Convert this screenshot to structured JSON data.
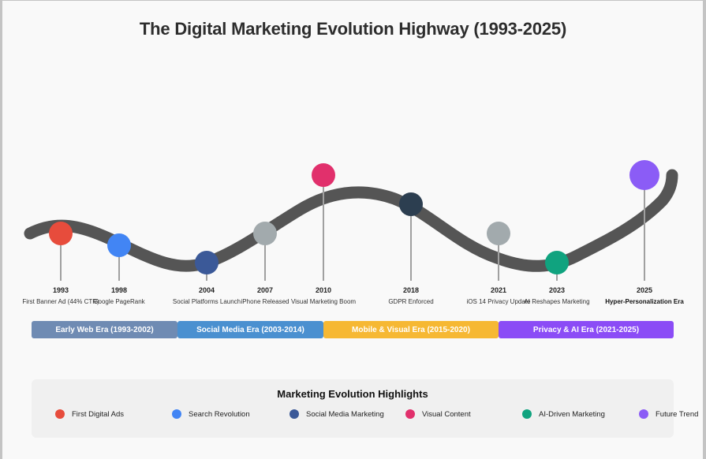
{
  "title": "The Digital Marketing Evolution Highway (1993-2025)",
  "milestones": [
    {
      "year": "1993",
      "event": "First Banner Ad (44% CTR)",
      "color": "#e74c3c",
      "emphasis": false
    },
    {
      "year": "1998",
      "event": "Google PageRank",
      "color": "#4285f4",
      "emphasis": false
    },
    {
      "year": "2004",
      "event": "Social Platforms Launch",
      "color": "#3b5998",
      "emphasis": false
    },
    {
      "year": "2007",
      "event": "iPhone Released",
      "color": "#a2aaad",
      "emphasis": false
    },
    {
      "year": "2010",
      "event": "Visual Marketing Boom",
      "color": "#e1306c",
      "emphasis": false
    },
    {
      "year": "2018",
      "event": "GDPR Enforced",
      "color": "#2c3e50",
      "emphasis": false
    },
    {
      "year": "2021",
      "event": "iOS 14 Privacy Update",
      "color": "#a2aaad",
      "emphasis": false
    },
    {
      "year": "2023",
      "event": "AI Reshapes Marketing",
      "color": "#10a37f",
      "emphasis": false
    },
    {
      "year": "2025",
      "event": "Hyper-Personalization Era",
      "color": "#8b5cf6",
      "emphasis": true
    }
  ],
  "eras": [
    {
      "label": "Early Web Era (1993-2002)",
      "color": "#6f8bb3"
    },
    {
      "label": "Social Media Era (2003-2014)",
      "color": "#4a90d0"
    },
    {
      "label": "Mobile & Visual Era (2015-2020)",
      "color": "#f6b833"
    },
    {
      "label": "Privacy & AI Era (2021-2025)",
      "color": "#8b4cf6"
    }
  ],
  "legend": {
    "title": "Marketing Evolution Highlights",
    "items": [
      {
        "label": "First Digital Ads",
        "color": "#e74c3c"
      },
      {
        "label": "Search Revolution",
        "color": "#4285f4"
      },
      {
        "label": "Social Media Marketing",
        "color": "#3b5998"
      },
      {
        "label": "Visual Content",
        "color": "#e1306c"
      },
      {
        "label": "AI-Driven Marketing",
        "color": "#10a37f"
      },
      {
        "label": "Future Trend",
        "color": "#8b5cf6"
      }
    ]
  },
  "road_color": "#555555"
}
